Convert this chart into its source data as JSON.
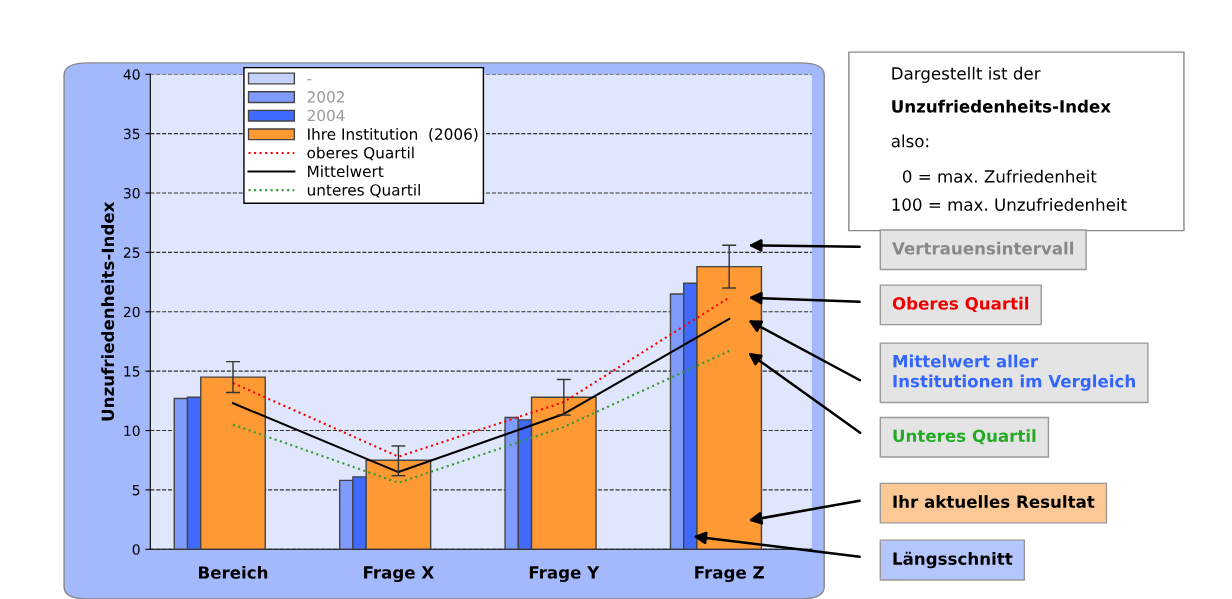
{
  "chart_data": {
    "type": "bar",
    "ylabel": "Unzufriedenheits-Index",
    "categories": [
      "Bereich",
      "Frage X",
      "Frage Y",
      "Frage Z"
    ],
    "series": [
      {
        "name": "-",
        "color": "#c4d2fd",
        "values": [
          null,
          null,
          null,
          null
        ]
      },
      {
        "name": "2002",
        "color": "#7f9cfd",
        "values": [
          12.7,
          5.8,
          11.1,
          21.5
        ]
      },
      {
        "name": "2004",
        "color": "#3f6afc",
        "values": [
          12.8,
          6.1,
          10.9,
          22.4
        ]
      },
      {
        "name": "Ihre Institution  (2006)",
        "color": "#ff9933",
        "values": [
          14.5,
          7.5,
          12.8,
          23.8
        ],
        "errors": [
          [
            13.2,
            15.8
          ],
          [
            6.2,
            8.7
          ],
          [
            11.3,
            14.3
          ],
          [
            22.0,
            25.6
          ]
        ]
      },
      {
        "name": "oberes Quartil",
        "type": "line",
        "color": "#ff0000",
        "line_style": "dotted",
        "values": [
          14.0,
          7.8,
          12.4,
          21.2
        ]
      },
      {
        "name": "Mittelwert",
        "type": "line",
        "color": "#000000",
        "line_style": "solid",
        "values": [
          12.3,
          6.5,
          11.4,
          19.4
        ]
      },
      {
        "name": "unteres Quartil",
        "type": "line",
        "color": "#339933",
        "line_style": "dotted",
        "values": [
          10.5,
          5.6,
          10.3,
          16.7
        ]
      }
    ],
    "ylim": [
      0,
      40
    ],
    "yticks": [
      0,
      5,
      10,
      15,
      20,
      25,
      30,
      35,
      40
    ],
    "grid": "y",
    "legend": "top left",
    "marker": "none",
    "annotations": [
      "Dargestellt ist der",
      "Unzufriedenheits-Index",
      "also:",
      "0 = max. Zufriedenheit",
      "100 = max. Unzufriedenheit",
      "Vertrauensintervall",
      "Oberes Quartil",
      "Mittelwert aller Institutionen im Vergleich",
      "Unteres Quartil",
      "Ihr aktuelles Resultat",
      "Längsschnitt"
    ]
  }
}
